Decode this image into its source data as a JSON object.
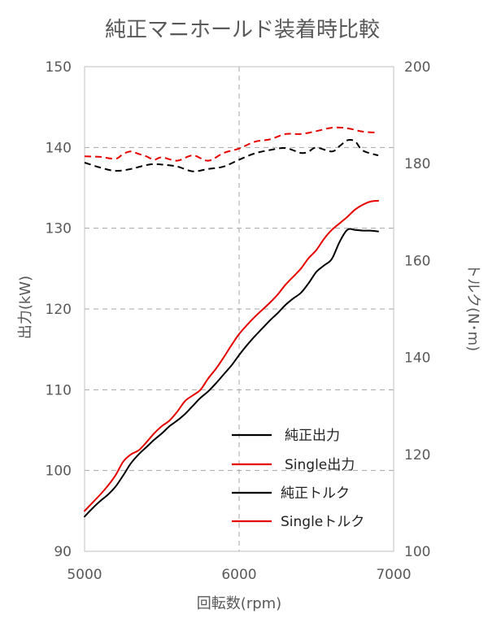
{
  "chart_data": {
    "type": "line",
    "title": "純正マニホールド装着時比較",
    "xlabel": "回転数(rpm)",
    "ylabel": "出力(kW)",
    "y2label": "トルク(N･m)",
    "xlim": [
      5000,
      7000
    ],
    "ylim": [
      90,
      150
    ],
    "y2lim": [
      100,
      200
    ],
    "xticks": [
      "5000",
      "6000",
      "7000"
    ],
    "yticks": [
      "90",
      "100",
      "110",
      "120",
      "130",
      "140",
      "150"
    ],
    "y2ticks": [
      "100",
      "120",
      "140",
      "160",
      "180",
      "200"
    ],
    "grid": {
      "horizontal": true,
      "vertical_at_x": 6000,
      "style": "dashed"
    },
    "legend_position": "lower-right",
    "series": [
      {
        "name": "純正出力",
        "axis": "left",
        "color": "#000000",
        "dash": "solid",
        "x": [
          5000,
          5050,
          5100,
          5150,
          5200,
          5250,
          5300,
          5350,
          5400,
          5450,
          5500,
          5550,
          5600,
          5650,
          5700,
          5750,
          5800,
          5850,
          5900,
          5950,
          6000,
          6050,
          6100,
          6150,
          6200,
          6250,
          6300,
          6350,
          6400,
          6450,
          6500,
          6550,
          6600,
          6650,
          6700,
          6750,
          6800,
          6850,
          6900
        ],
        "values": [
          94.3,
          95.3,
          96.2,
          97.0,
          98.0,
          99.4,
          100.9,
          102.0,
          102.9,
          103.8,
          104.6,
          105.5,
          106.2,
          107.0,
          108.0,
          109.0,
          109.8,
          110.8,
          111.9,
          113.0,
          114.3,
          115.5,
          116.6,
          117.6,
          118.6,
          119.5,
          120.5,
          121.3,
          122.0,
          123.2,
          124.6,
          125.4,
          126.2,
          128.3,
          129.8,
          129.8,
          129.7,
          129.7,
          129.6
        ]
      },
      {
        "name": "Single出力",
        "axis": "left",
        "color": "#e60000",
        "dash": "solid",
        "x": [
          5000,
          5050,
          5100,
          5150,
          5200,
          5250,
          5300,
          5350,
          5400,
          5450,
          5500,
          5550,
          5600,
          5650,
          5700,
          5750,
          5800,
          5850,
          5900,
          5950,
          6000,
          6050,
          6100,
          6150,
          6200,
          6250,
          6300,
          6350,
          6400,
          6450,
          6500,
          6550,
          6600,
          6650,
          6700,
          6750,
          6800,
          6850,
          6900
        ],
        "values": [
          95.0,
          96.0,
          97.0,
          98.1,
          99.4,
          101.1,
          102.0,
          102.5,
          103.5,
          104.6,
          105.5,
          106.2,
          107.3,
          108.6,
          109.3,
          110.0,
          111.4,
          112.6,
          114.0,
          115.5,
          116.9,
          118.0,
          119.0,
          119.9,
          120.8,
          121.8,
          123.0,
          124.0,
          125.0,
          126.3,
          127.3,
          128.7,
          129.8,
          130.6,
          131.4,
          132.3,
          132.9,
          133.3,
          133.4
        ]
      },
      {
        "name": "純正トルク",
        "axis": "right",
        "color": "#000000",
        "dash": "dashed",
        "x": [
          5000,
          5100,
          5200,
          5300,
          5350,
          5400,
          5450,
          5500,
          5600,
          5700,
          5800,
          5900,
          6000,
          6100,
          6200,
          6300,
          6400,
          6450,
          6500,
          6600,
          6650,
          6700,
          6750,
          6800,
          6900
        ],
        "values": [
          180.2,
          179.2,
          178.5,
          178.9,
          179.3,
          179.7,
          179.9,
          179.8,
          179.4,
          178.4,
          178.9,
          179.4,
          180.8,
          182.1,
          182.8,
          183.2,
          182.2,
          182.5,
          183.3,
          182.5,
          183.6,
          184.8,
          184.6,
          182.7,
          181.7
        ]
      },
      {
        "name": "Singleトルク",
        "axis": "right",
        "color": "#e60000",
        "dash": "dashed",
        "x": [
          5000,
          5100,
          5200,
          5250,
          5300,
          5350,
          5400,
          5450,
          5500,
          5600,
          5700,
          5800,
          5900,
          6000,
          6100,
          6200,
          6300,
          6400,
          6500,
          6600,
          6700,
          6800,
          6900
        ],
        "values": [
          181.5,
          181.4,
          181.0,
          182.0,
          182.5,
          182.0,
          181.5,
          180.8,
          181.3,
          180.6,
          181.7,
          180.6,
          182.2,
          183.1,
          184.5,
          185.0,
          186.1,
          186.1,
          186.7,
          187.4,
          187.3,
          186.6,
          186.4
        ]
      }
    ]
  }
}
